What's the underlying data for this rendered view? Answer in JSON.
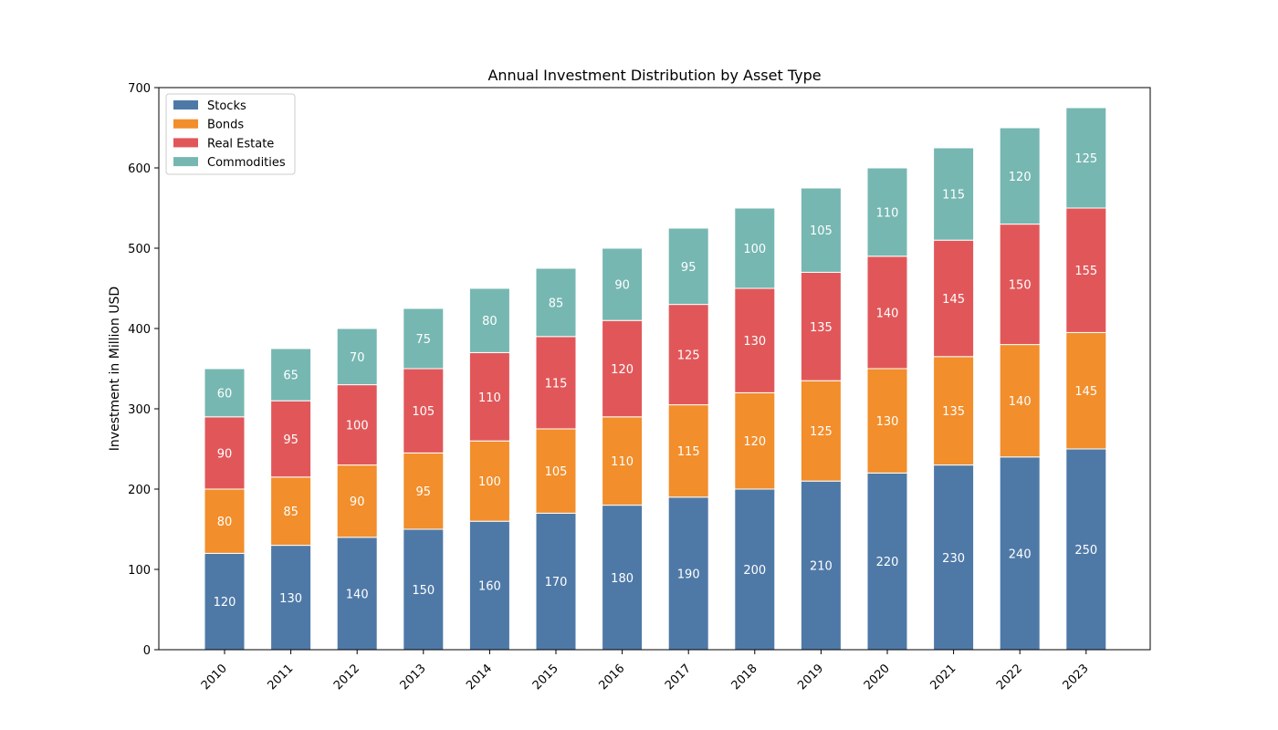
{
  "chart_data": {
    "type": "bar",
    "stacked": true,
    "title": "Annual Investment Distribution by Asset Type",
    "xlabel": "",
    "ylabel": "Investment in Million USD",
    "ylim": [
      0,
      700
    ],
    "yticks": [
      0,
      100,
      200,
      300,
      400,
      500,
      600,
      700
    ],
    "grid": false,
    "legend_position": "top-left",
    "categories": [
      "2010",
      "2011",
      "2012",
      "2013",
      "2014",
      "2015",
      "2016",
      "2017",
      "2018",
      "2019",
      "2020",
      "2021",
      "2022",
      "2023"
    ],
    "series": [
      {
        "name": "Stocks",
        "color": "#4e79a7",
        "values": [
          120,
          130,
          140,
          150,
          160,
          170,
          180,
          190,
          200,
          210,
          220,
          230,
          240,
          250
        ]
      },
      {
        "name": "Bonds",
        "color": "#f28e2b",
        "values": [
          80,
          85,
          90,
          95,
          100,
          105,
          110,
          115,
          120,
          125,
          130,
          135,
          140,
          145
        ]
      },
      {
        "name": "Real Estate",
        "color": "#e15759",
        "values": [
          90,
          95,
          100,
          105,
          110,
          115,
          120,
          125,
          130,
          135,
          140,
          145,
          150,
          155
        ]
      },
      {
        "name": "Commodities",
        "color": "#76b7b2",
        "values": [
          60,
          65,
          70,
          75,
          80,
          85,
          90,
          95,
          100,
          105,
          110,
          115,
          120,
          125
        ]
      }
    ]
  }
}
